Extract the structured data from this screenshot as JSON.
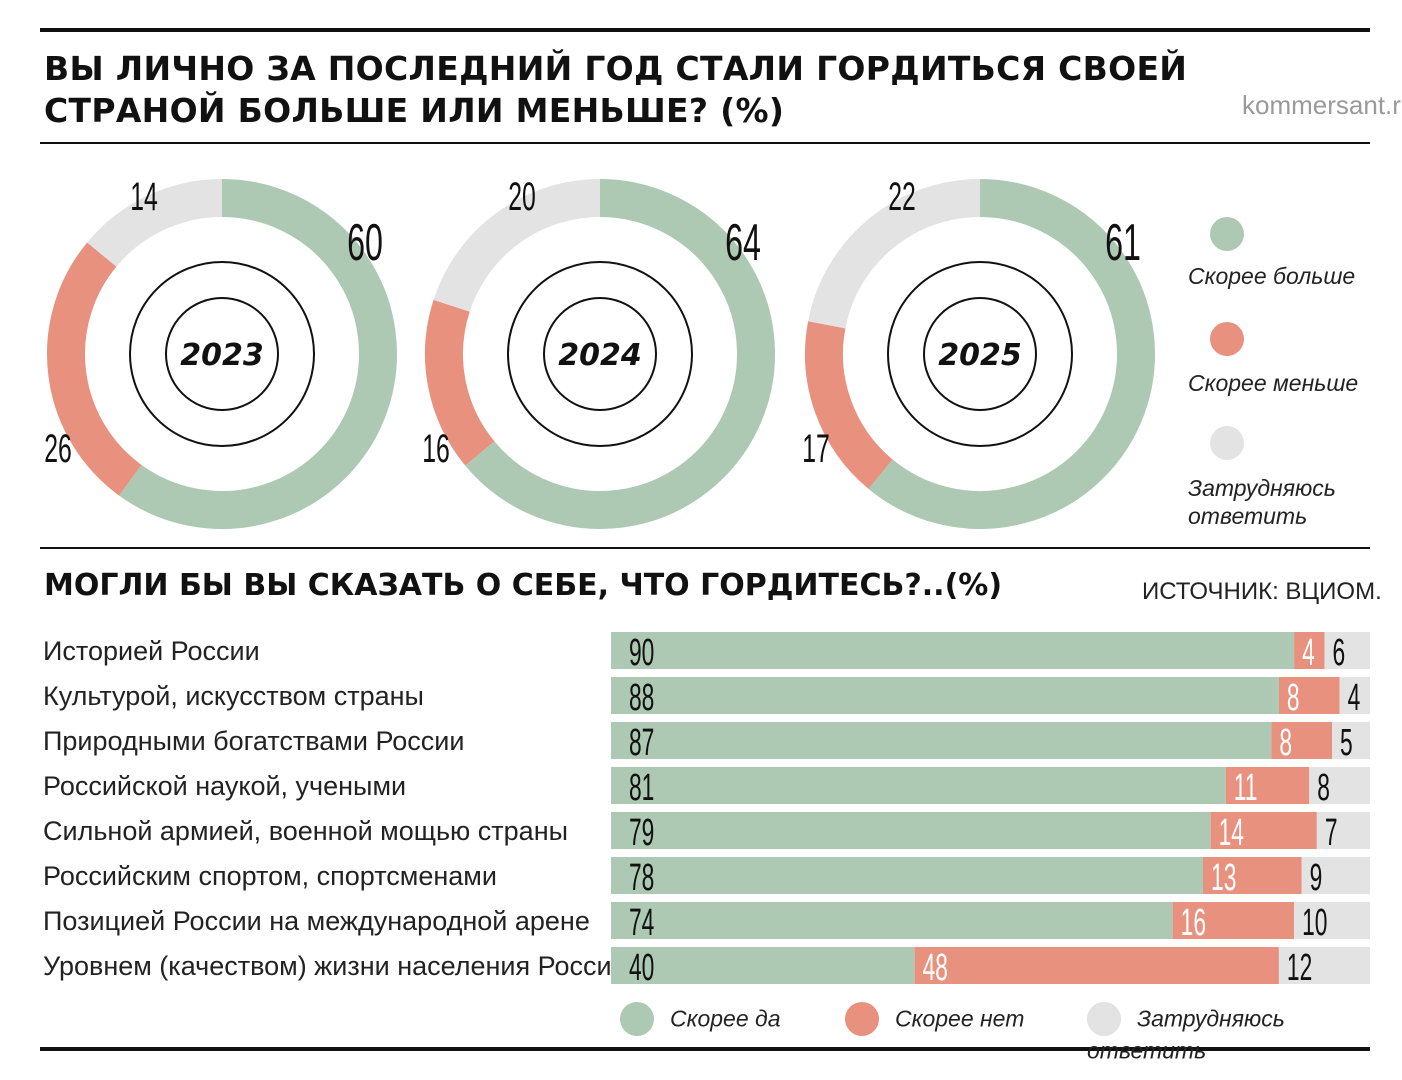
{
  "header": {
    "title": "ВЫ ЛИЧНО ЗА ПОСЛЕДНИЙ ГОД СТАЛИ ГОРДИТЬСЯ СВОЕЙ СТРАНОЙ БОЛЬШЕ ИЛИ МЕНЬШЕ? (%)",
    "site": "kommersant.ru"
  },
  "colors": {
    "green": "#aec9b3",
    "red": "#e8917f",
    "gray": "#e3e3e3"
  },
  "donut_legend": {
    "more": "Скорее больше",
    "less": "Скорее меньше",
    "unsure": "Затрудняюсь ответить"
  },
  "section2": {
    "title": "МОГЛИ БЫ ВЫ СКАЗАТЬ О СЕБЕ, ЧТО ГОРДИТЕСЬ?..(%)",
    "source": "ИСТОЧНИК: ВЦИОМ."
  },
  "bar_legend": {
    "yes": "Скорее да",
    "no": "Скорее нет",
    "unsure": "Затрудняюсь ответить"
  },
  "chart_data": [
    {
      "type": "pie",
      "title": "2023",
      "categories": [
        "Скорее больше",
        "Скорее меньше",
        "Затрудняюсь ответить"
      ],
      "values": [
        60,
        26,
        14
      ]
    },
    {
      "type": "pie",
      "title": "2024",
      "categories": [
        "Скорее больше",
        "Скорее меньше",
        "Затрудняюсь ответить"
      ],
      "values": [
        64,
        16,
        20
      ]
    },
    {
      "type": "pie",
      "title": "2025",
      "categories": [
        "Скорее больше",
        "Скорее меньше",
        "Затрудняюсь ответить"
      ],
      "values": [
        61,
        17,
        22
      ]
    },
    {
      "type": "bar",
      "stacked": true,
      "orientation": "horizontal",
      "title": "МОГЛИ БЫ ВЫ СКАЗАТЬ О СЕБЕ, ЧТО ГОРДИТЕСЬ?..(%)",
      "categories": [
        "Историей России",
        "Культурой, искусством страны",
        "Природными богатствами России",
        "Российской наукой, учеными",
        "Сильной армией, военной мощью страны",
        "Российским спортом, спортсменами",
        "Позицией России на международной арене",
        "Уровнем (качеством) жизни населения России"
      ],
      "series": [
        {
          "name": "Скорее да",
          "values": [
            90,
            88,
            87,
            81,
            79,
            78,
            74,
            40
          ]
        },
        {
          "name": "Скорее нет",
          "values": [
            4,
            8,
            8,
            11,
            14,
            13,
            16,
            48
          ]
        },
        {
          "name": "Затрудняюсь ответить",
          "values": [
            6,
            4,
            5,
            8,
            7,
            9,
            10,
            12
          ]
        }
      ]
    }
  ]
}
